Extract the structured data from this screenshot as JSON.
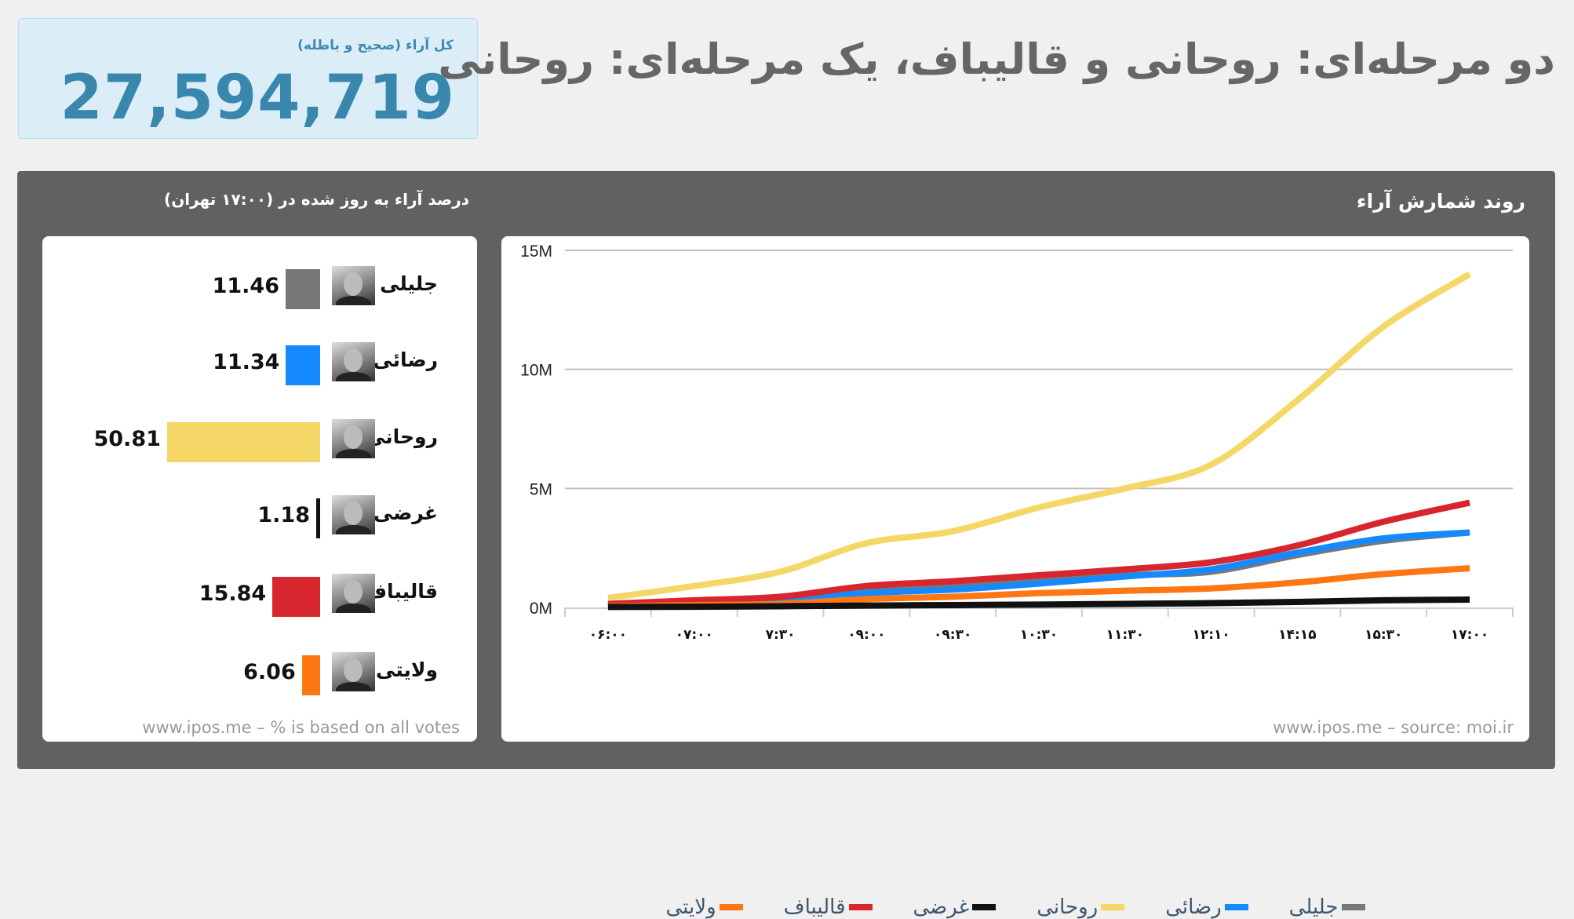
{
  "header": {
    "title": "دو مرحله‌ای: روحانی و قالیباف، یک مرحله‌ای: روحانی",
    "total_label": "کل آراء (صحیح و باطله)",
    "total_value": "27,594,719"
  },
  "left_panel": {
    "title": "درصد آراء به روز شده در (۱۷:۰۰ تهران)",
    "footer": "www.ipos.me – % is based on all votes",
    "candidates": [
      {
        "name": "جلیلی",
        "percent": 11.46,
        "label": "11.46",
        "color": "#777777"
      },
      {
        "name": "رضائی",
        "percent": 11.34,
        "label": "11.34",
        "color": "#158aff"
      },
      {
        "name": "روحانی",
        "percent": 50.81,
        "label": "50.81",
        "color": "#f4d766"
      },
      {
        "name": "غرضی",
        "percent": 1.18,
        "label": "1.18",
        "color": "#111111"
      },
      {
        "name": "قالیباف",
        "percent": 15.84,
        "label": "15.84",
        "color": "#d7262e"
      },
      {
        "name": "ولایتی",
        "percent": 6.06,
        "label": "6.06",
        "color": "#fd7713"
      }
    ]
  },
  "right_panel": {
    "title": "روند شمارش آراء",
    "footer": "www.ipos.me – source: moi.ir"
  },
  "chart_data": {
    "type": "line",
    "title": "روند شمارش آراء",
    "x": [
      "۰۶:۰۰",
      "۰۷:۰۰",
      "۷:۳۰",
      "۰۹:۰۰",
      "۰۹:۳۰",
      "۱۰:۳۰",
      "۱۱:۳۰",
      "۱۲:۱۰",
      "۱۴:۱۵",
      "۱۵:۳۰",
      "۱۷:۰۰"
    ],
    "ylim": [
      0,
      15000000
    ],
    "yticks": [
      0,
      5000000,
      10000000,
      15000000
    ],
    "ytick_labels": [
      "0M",
      "5M",
      "10M",
      "15M"
    ],
    "grid": true,
    "legend": "bottom",
    "series": [
      {
        "name": "جلیلی",
        "color": "#777777",
        "values": [
          100000,
          200000,
          300000,
          650000,
          850000,
          1100000,
          1350000,
          1500000,
          2200000,
          2800000,
          3150000
        ]
      },
      {
        "name": "رضائی",
        "color": "#158aff",
        "values": [
          100000,
          200000,
          300000,
          600000,
          750000,
          1000000,
          1300000,
          1600000,
          2300000,
          2900000,
          3150000
        ]
      },
      {
        "name": "روحانی",
        "color": "#f4d766",
        "values": [
          400000,
          900000,
          1500000,
          2700000,
          3200000,
          4200000,
          5000000,
          6000000,
          8700000,
          11800000,
          14000000
        ]
      },
      {
        "name": "غرضی",
        "color": "#111111",
        "values": [
          20000,
          30000,
          50000,
          80000,
          100000,
          120000,
          150000,
          180000,
          230000,
          300000,
          330000
        ]
      },
      {
        "name": "قالیباف",
        "color": "#d7262e",
        "values": [
          150000,
          300000,
          450000,
          900000,
          1100000,
          1350000,
          1600000,
          1900000,
          2600000,
          3600000,
          4400000
        ]
      },
      {
        "name": "ولایتی",
        "color": "#fd7713",
        "values": [
          50000,
          100000,
          150000,
          350000,
          450000,
          600000,
          700000,
          800000,
          1050000,
          1400000,
          1650000
        ]
      }
    ]
  }
}
